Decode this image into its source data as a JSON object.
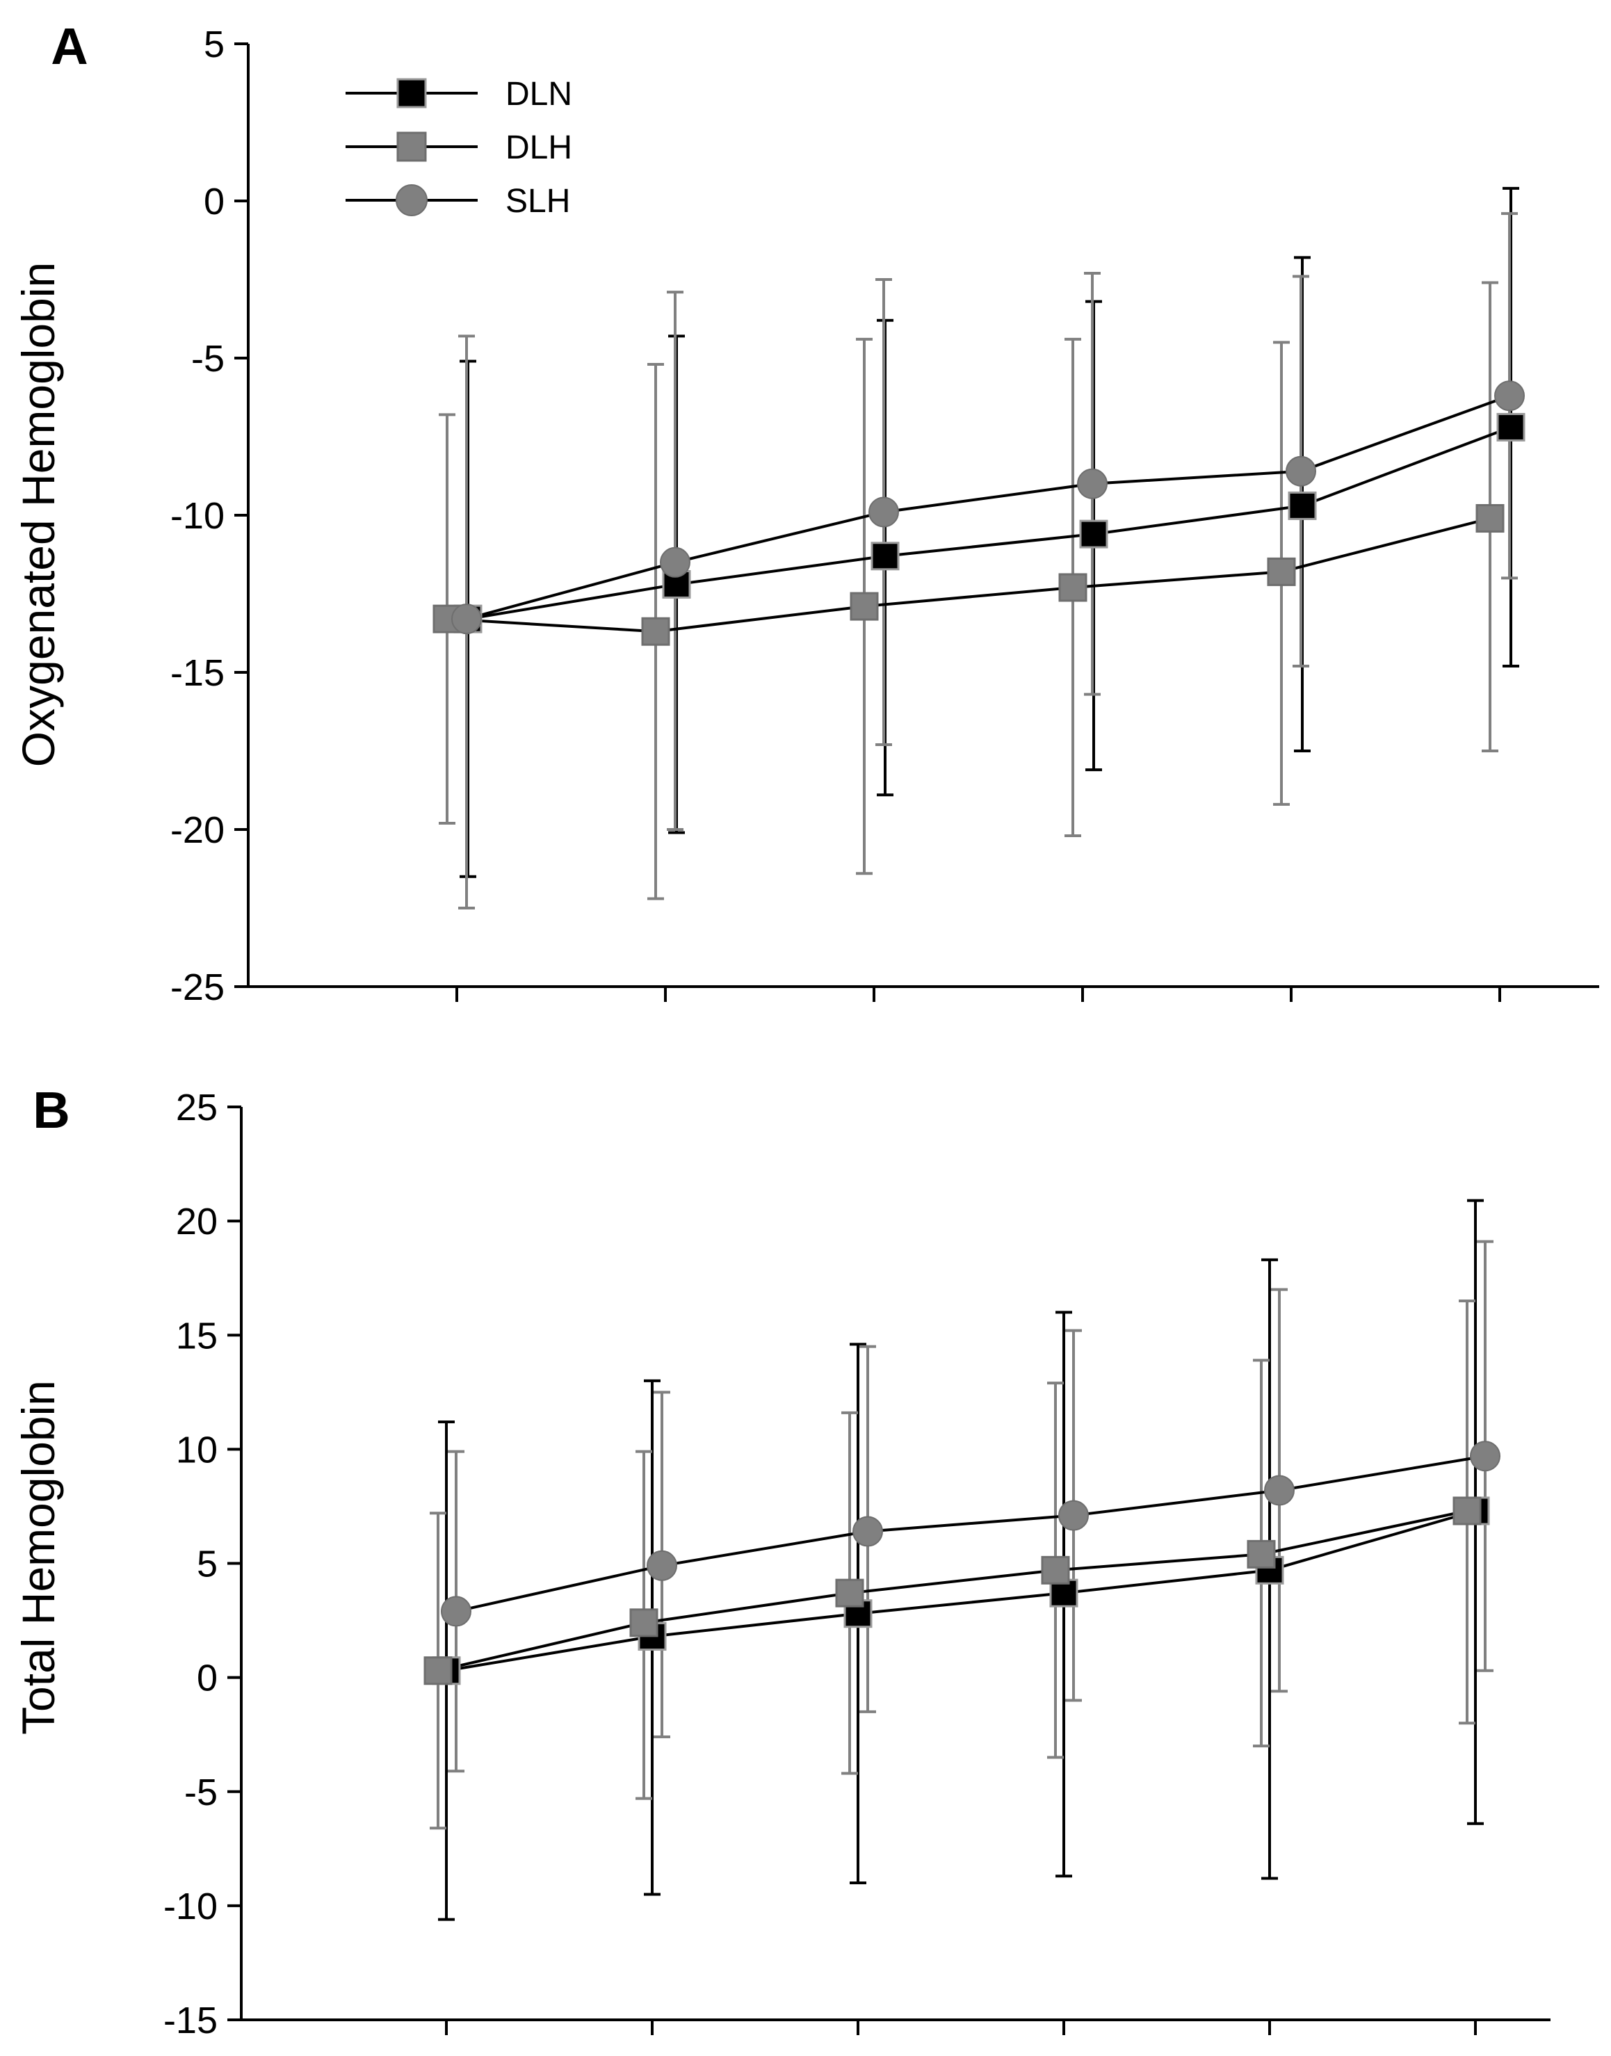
{
  "chart_data": [
    {
      "type": "line",
      "panel_label": "A",
      "ylabel": "Oxygenated Hemoglobin",
      "xlabel": "",
      "ylim": [
        -25,
        5
      ],
      "yticks": [
        -25,
        -20,
        -15,
        -10,
        -5,
        0,
        5
      ],
      "x_count": 6,
      "legend": {
        "placement": "top-left",
        "entries": [
          "DLN",
          "DLH",
          "SLH"
        ]
      },
      "series": [
        {
          "name": "DLN",
          "marker": "square",
          "color": "#000000",
          "values": [
            -13.3,
            -12.2,
            -11.3,
            -10.6,
            -9.7,
            -7.2
          ],
          "err_low": [
            -21.5,
            -20.1,
            -18.9,
            -18.1,
            -17.5,
            -14.8
          ],
          "err_high": [
            -5.1,
            -4.3,
            -3.8,
            -3.2,
            -1.8,
            0.4
          ]
        },
        {
          "name": "DLH",
          "marker": "square",
          "color": "#808080",
          "values": [
            -13.3,
            -13.7,
            -12.9,
            -12.3,
            -11.8,
            -10.1
          ],
          "err_low": [
            -19.8,
            -22.2,
            -21.4,
            -20.2,
            -19.2,
            -17.5
          ],
          "err_high": [
            -6.8,
            -5.2,
            -4.4,
            -4.4,
            -4.5,
            -2.6
          ]
        },
        {
          "name": "SLH",
          "marker": "circle",
          "color": "#808080",
          "values": [
            -13.3,
            -11.5,
            -9.9,
            -9.0,
            -8.6,
            -6.2
          ],
          "err_low": [
            -22.5,
            -20.0,
            -17.3,
            -15.7,
            -14.8,
            -12.0
          ],
          "err_high": [
            -4.3,
            -2.9,
            -2.5,
            -2.3,
            -2.4,
            -0.4
          ]
        }
      ]
    },
    {
      "type": "line",
      "panel_label": "B",
      "ylabel": "Total Hemoglobin",
      "xlabel": "",
      "ylim": [
        -15,
        25
      ],
      "yticks": [
        -15,
        -10,
        -5,
        0,
        5,
        10,
        15,
        20,
        25
      ],
      "x_count": 6,
      "series": [
        {
          "name": "DLN",
          "marker": "square",
          "color": "#000000",
          "values": [
            0.3,
            1.8,
            2.8,
            3.7,
            4.7,
            7.3
          ],
          "err_low": [
            -10.6,
            -9.5,
            -9.0,
            -8.7,
            -8.8,
            -6.4
          ],
          "err_high": [
            11.2,
            13.0,
            14.6,
            16.0,
            18.3,
            20.9
          ]
        },
        {
          "name": "DLH",
          "marker": "square",
          "color": "#808080",
          "values": [
            0.3,
            2.4,
            3.7,
            4.7,
            5.4,
            7.3
          ],
          "err_low": [
            -6.6,
            -5.3,
            -4.2,
            -3.5,
            -3.0,
            -2.0
          ],
          "err_high": [
            7.2,
            9.9,
            11.6,
            12.9,
            13.9,
            16.5
          ]
        },
        {
          "name": "SLH",
          "marker": "circle",
          "color": "#808080",
          "values": [
            2.9,
            4.9,
            6.4,
            7.1,
            8.2,
            9.7
          ],
          "err_low": [
            -4.1,
            -2.6,
            -1.5,
            -1.0,
            -0.6,
            0.3
          ],
          "err_high": [
            9.9,
            12.5,
            14.5,
            15.2,
            17.0,
            19.1
          ]
        }
      ]
    }
  ]
}
